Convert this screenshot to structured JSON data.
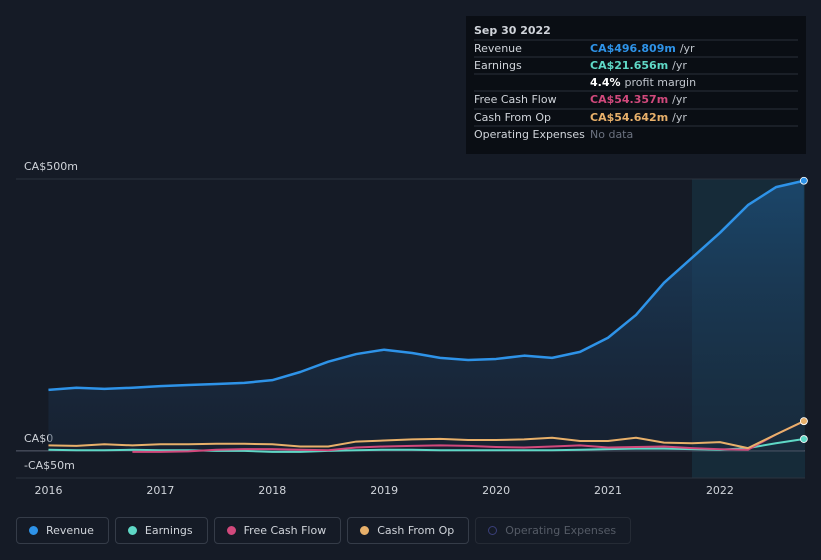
{
  "chart_data": {
    "type": "line",
    "xlim": [
      2015.71,
      2022.76
    ],
    "xticks": [
      2016,
      2017,
      2018,
      2019,
      2020,
      2021,
      2022
    ],
    "ylim": [
      -50,
      500
    ],
    "yticks": [
      {
        "value": 500,
        "label": "CA$500m"
      },
      {
        "value": 0,
        "label": "CA$0"
      },
      {
        "value": -50,
        "label": "-CA$50m"
      }
    ],
    "grid": true,
    "x": [
      2016,
      2016.25,
      2016.5,
      2016.75,
      2017,
      2017.25,
      2017.5,
      2017.75,
      2018,
      2018.25,
      2018.5,
      2018.75,
      2019,
      2019.25,
      2019.5,
      2019.75,
      2020,
      2020.25,
      2020.5,
      2020.75,
      2021,
      2021.25,
      2021.5,
      2021.75,
      2022,
      2022.25,
      2022.5,
      2022.75
    ],
    "series": [
      {
        "name": "Revenue",
        "color": "#2e93e8",
        "values": [
          112,
          116,
          114,
          116,
          119,
          121,
          123,
          125,
          130,
          145,
          164,
          178,
          186,
          180,
          171,
          167,
          169,
          175,
          171,
          182,
          208,
          250,
          309,
          355,
          401,
          452,
          485,
          496.809
        ]
      },
      {
        "name": "Earnings",
        "color": "#5fd8c6",
        "values": [
          2,
          1,
          1,
          2,
          1,
          1,
          0,
          0,
          -2,
          -2,
          0,
          1,
          2,
          2,
          1,
          1,
          1,
          1,
          1,
          2,
          3,
          4,
          4,
          3,
          2,
          5,
          14,
          21.656
        ]
      },
      {
        "name": "Free Cash Flow",
        "color": "#d1497c",
        "values": [
          null,
          null,
          null,
          -2,
          -2,
          -1,
          2,
          3,
          3,
          2,
          1,
          6,
          8,
          9,
          10,
          9,
          7,
          6,
          8,
          10,
          6,
          7,
          8,
          5,
          3,
          2,
          30,
          54.357
        ]
      },
      {
        "name": "Cash From Op",
        "color": "#e8b06a",
        "values": [
          10,
          9,
          12,
          10,
          12,
          12,
          13,
          13,
          12,
          8,
          8,
          17,
          19,
          21,
          22,
          20,
          20,
          21,
          24,
          18,
          18,
          24,
          15,
          14,
          16,
          5,
          30,
          54.642
        ]
      },
      {
        "name": "Operating Expenses",
        "color": "#3a3f7a",
        "values": [
          null,
          null,
          null,
          null,
          null,
          null,
          null,
          null,
          null,
          null,
          null,
          null,
          null,
          null,
          null,
          null,
          null,
          null,
          null,
          null,
          null,
          null,
          null,
          null,
          null,
          null,
          null,
          null
        ]
      }
    ]
  },
  "tooltip": {
    "title": "Sep 30 2022",
    "rows": [
      {
        "label": "Revenue",
        "value": "CA$496.809m",
        "suffix": "/yr",
        "color": "#2e93e8"
      },
      {
        "label": "Earnings",
        "value": "CA$21.656m",
        "suffix": "/yr",
        "color": "#5fd8c6"
      },
      {
        "label": "",
        "value": "4.4%",
        "suffix": "profit margin",
        "color": "#ffffff"
      },
      {
        "label": "Free Cash Flow",
        "value": "CA$54.357m",
        "suffix": "/yr",
        "color": "#d1497c"
      },
      {
        "label": "Cash From Op",
        "value": "CA$54.642m",
        "suffix": "/yr",
        "color": "#e8b06a"
      },
      {
        "label": "Operating Expenses",
        "value": "No data",
        "suffix": "",
        "color": "#6b7280"
      }
    ]
  }
}
